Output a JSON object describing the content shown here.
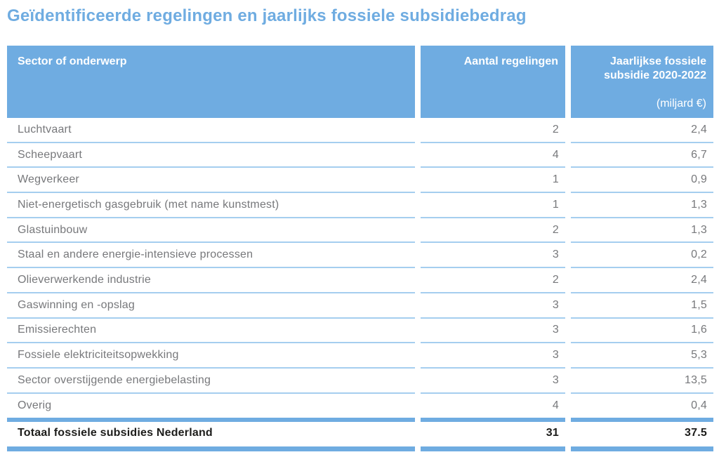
{
  "title": "Geïdentificeerde regelingen en jaarlijks fossiele subsidiebedrag",
  "table": {
    "columns": [
      {
        "label": "Sector of onderwerp"
      },
      {
        "label": "Aantal regelingen"
      },
      {
        "label": "Jaarlijkse fossiele subsidie 2020-2022",
        "sublabel": "(miljard €)"
      }
    ],
    "rows": [
      {
        "sector": "Luchtvaart",
        "count": "2",
        "amount": "2,4"
      },
      {
        "sector": "Scheepvaart",
        "count": "4",
        "amount": "6,7"
      },
      {
        "sector": "Wegverkeer",
        "count": "1",
        "amount": "0,9"
      },
      {
        "sector": "Niet-energetisch gasgebruik (met name kunstmest)",
        "count": "1",
        "amount": "1,3"
      },
      {
        "sector": "Glastuinbouw",
        "count": "2",
        "amount": "1,3"
      },
      {
        "sector": "Staal en andere energie-intensieve processen",
        "count": "3",
        "amount": "0,2"
      },
      {
        "sector": "Olieverwerkende industrie",
        "count": "2",
        "amount": "2,4"
      },
      {
        "sector": "Gaswinning en -opslag",
        "count": "3",
        "amount": "1,5"
      },
      {
        "sector": "Emissierechten",
        "count": "3",
        "amount": "1,6"
      },
      {
        "sector": "Fossiele elektriciteitsopwekking",
        "count": "3",
        "amount": "5,3"
      },
      {
        "sector": "Sector overstijgende energiebelasting",
        "count": "3",
        "amount": "13,5"
      },
      {
        "sector": "Overig",
        "count": "4",
        "amount": "0,4"
      }
    ],
    "total": {
      "label": "Totaal fossiele subsidies Nederland",
      "count": "31",
      "amount": "37.5"
    }
  },
  "colors": {
    "accent_blue": "#6FACE1",
    "divider_blue": "#A5CEEF",
    "text_gray": "#77787B",
    "text_black": "#1D1D1B"
  }
}
